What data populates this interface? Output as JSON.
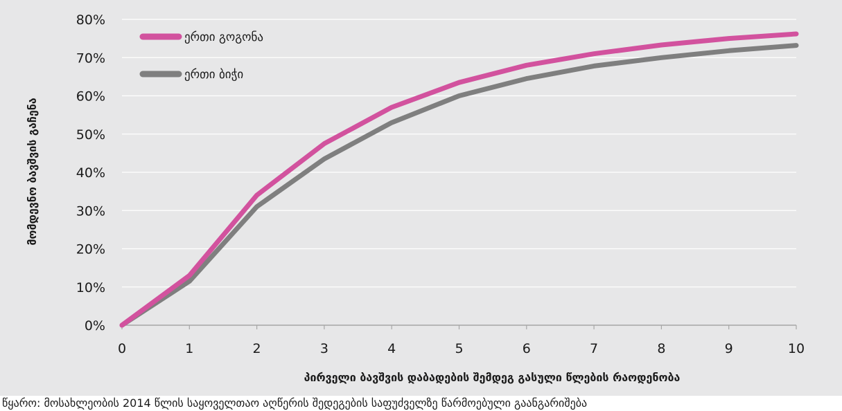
{
  "chart_data": {
    "type": "line",
    "x": [
      0,
      1,
      2,
      3,
      4,
      5,
      6,
      7,
      8,
      9,
      10
    ],
    "series": [
      {
        "name": "ერთი გოგონა",
        "color": "#d2529e",
        "values": [
          0,
          13,
          34,
          47.5,
          57,
          63.5,
          68,
          71,
          73.3,
          75,
          76.2
        ]
      },
      {
        "name": "ერთი ბიჭი",
        "color": "#7f7f7f",
        "values": [
          0,
          11.5,
          31,
          43.5,
          53,
          60,
          64.5,
          67.8,
          70,
          71.8,
          73.2
        ]
      }
    ],
    "xlabel": "პირველი ბავშვის დაბადების შემდეგ გასული წლების რაოდენობა",
    "ylabel": "მომდევნო ბავშვის გაჩენა",
    "xlim": [
      0,
      10
    ],
    "ylim": [
      0,
      80
    ],
    "xticks": [
      "0",
      "1",
      "2",
      "3",
      "4",
      "5",
      "6",
      "7",
      "8",
      "9",
      "10"
    ],
    "yticks": [
      "0%",
      "10%",
      "20%",
      "30%",
      "40%",
      "50%",
      "60%",
      "70%",
      "80%"
    ],
    "grid": "horizontal",
    "legend_position": "top-left",
    "background": "#e7e7e8"
  },
  "source_note": "წყარო: მოსახლეობის 2014 წლის საყოველთაო აღწერის შედეგების საფუძველზე წარმოებული გაანგარიშება"
}
